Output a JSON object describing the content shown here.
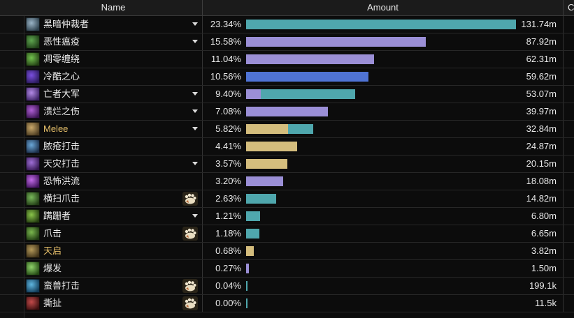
{
  "header": {
    "name_label": "Name",
    "amount_label": "Amount",
    "extra_label": "C"
  },
  "colors": {
    "teal": "#4fa7ad",
    "lavender": "#9b8fd6",
    "gold": "#d4bd7d",
    "blue": "#4f73d4"
  },
  "rows": [
    {
      "name": "黑暗仲裁者",
      "pct": "23.34%",
      "value": "131.74m",
      "share": 1.0,
      "dropdown": true,
      "pet": false,
      "gold": false,
      "segs": [
        {
          "c": "teal",
          "f": 1.0
        }
      ],
      "icon": "dark-arbiter-icon",
      "ic": [
        "#9ab4c6",
        "#2c3e4a"
      ]
    },
    {
      "name": "恶性瘟疫",
      "pct": "15.58%",
      "value": "87.92m",
      "share": 0.667,
      "dropdown": true,
      "pet": false,
      "gold": false,
      "segs": [
        {
          "c": "lavender",
          "f": 1.0
        }
      ],
      "icon": "virulent-plague-icon",
      "ic": [
        "#5ea64f",
        "#1e3d17"
      ]
    },
    {
      "name": "凋零缠绕",
      "pct": "11.04%",
      "value": "62.31m",
      "share": 0.473,
      "dropdown": false,
      "pet": false,
      "gold": false,
      "segs": [
        {
          "c": "lavender",
          "f": 1.0
        }
      ],
      "icon": "death-coil-icon",
      "ic": [
        "#72c24e",
        "#233f14"
      ]
    },
    {
      "name": "冷酷之心",
      "pct": "10.56%",
      "value": "59.62m",
      "share": 0.453,
      "dropdown": false,
      "pet": false,
      "gold": false,
      "segs": [
        {
          "c": "blue",
          "f": 1.0
        }
      ],
      "icon": "heart-icon",
      "ic": [
        "#7a4fe0",
        "#2a1a5a"
      ]
    },
    {
      "name": "亡者大军",
      "pct": "9.40%",
      "value": "53.07m",
      "share": 0.403,
      "dropdown": true,
      "pet": false,
      "gold": false,
      "segs": [
        {
          "c": "lavender",
          "f": 0.135
        },
        {
          "c": "teal",
          "f": 0.865
        }
      ],
      "icon": "army-icon",
      "ic": [
        "#b38ae6",
        "#3b2163"
      ]
    },
    {
      "name": "溃烂之伤",
      "pct": "7.08%",
      "value": "39.97m",
      "share": 0.303,
      "dropdown": true,
      "pet": false,
      "gold": false,
      "segs": [
        {
          "c": "lavender",
          "f": 1.0
        }
      ],
      "icon": "festering-wound-icon",
      "ic": [
        "#b05fd6",
        "#3a1350"
      ]
    },
    {
      "name": "Melee",
      "pct": "5.82%",
      "value": "32.84m",
      "share": 0.249,
      "dropdown": true,
      "pet": false,
      "gold": true,
      "segs": [
        {
          "c": "gold",
          "f": 0.63
        },
        {
          "c": "teal",
          "f": 0.37
        }
      ],
      "icon": "melee-icon",
      "ic": [
        "#c9a86a",
        "#4a3a20"
      ]
    },
    {
      "name": "脓疮打击",
      "pct": "4.41%",
      "value": "24.87m",
      "share": 0.189,
      "dropdown": false,
      "pet": false,
      "gold": false,
      "segs": [
        {
          "c": "gold",
          "f": 1.0
        }
      ],
      "icon": "festering-strike-icon",
      "ic": [
        "#6aa7d8",
        "#1c2f4a"
      ]
    },
    {
      "name": "天灾打击",
      "pct": "3.57%",
      "value": "20.15m",
      "share": 0.153,
      "dropdown": true,
      "pet": false,
      "gold": false,
      "segs": [
        {
          "c": "gold",
          "f": 1.0
        }
      ],
      "icon": "scourge-strike-icon",
      "ic": [
        "#9f6fd6",
        "#33174f"
      ]
    },
    {
      "name": "恐怖洪流",
      "pct": "3.20%",
      "value": "18.08m",
      "share": 0.137,
      "dropdown": false,
      "pet": false,
      "gold": false,
      "segs": [
        {
          "c": "lavender",
          "f": 1.0
        }
      ],
      "icon": "dread-torrent-icon",
      "ic": [
        "#c26ae8",
        "#3f1259"
      ]
    },
    {
      "name": "横扫爪击",
      "pct": "2.63%",
      "value": "14.82m",
      "share": 0.112,
      "dropdown": false,
      "pet": true,
      "gold": false,
      "segs": [
        {
          "c": "teal",
          "f": 1.0
        }
      ],
      "icon": "sweeping-claws-icon",
      "ic": [
        "#78b85a",
        "#213a15"
      ]
    },
    {
      "name": "蹒跚者",
      "pct": "1.21%",
      "value": "6.80m",
      "share": 0.052,
      "dropdown": true,
      "pet": false,
      "gold": false,
      "segs": [
        {
          "c": "teal",
          "f": 1.0
        }
      ],
      "icon": "shambler-icon",
      "ic": [
        "#8ac54a",
        "#243c10"
      ]
    },
    {
      "name": "爪击",
      "pct": "1.18%",
      "value": "6.65m",
      "share": 0.05,
      "dropdown": false,
      "pet": true,
      "gold": false,
      "segs": [
        {
          "c": "teal",
          "f": 1.0
        }
      ],
      "icon": "claw-icon",
      "ic": [
        "#7ab84e",
        "#1f3a12"
      ]
    },
    {
      "name": "天启",
      "pct": "0.68%",
      "value": "3.82m",
      "share": 0.029,
      "dropdown": false,
      "pet": false,
      "gold": true,
      "segs": [
        {
          "c": "gold",
          "f": 1.0
        }
      ],
      "icon": "apocalypse-icon",
      "ic": [
        "#b59a5a",
        "#3d3018"
      ]
    },
    {
      "name": "爆发",
      "pct": "0.27%",
      "value": "1.50m",
      "share": 0.011,
      "dropdown": false,
      "pet": false,
      "gold": false,
      "segs": [
        {
          "c": "lavender",
          "f": 1.0
        }
      ],
      "icon": "outbreak-icon",
      "ic": [
        "#8fd36a",
        "#244a14"
      ]
    },
    {
      "name": "蛮兽打击",
      "pct": "0.04%",
      "value": "199.1k",
      "share": 0.0016,
      "dropdown": false,
      "pet": true,
      "gold": false,
      "segs": [
        {
          "c": "teal",
          "f": 1.0
        }
      ],
      "icon": "bestial-strike-icon",
      "ic": [
        "#5fb6e0",
        "#113a56"
      ]
    },
    {
      "name": "撕扯",
      "pct": "0.00%",
      "value": "11.5k",
      "share": 0.0001,
      "dropdown": false,
      "pet": true,
      "gold": false,
      "segs": [
        {
          "c": "teal",
          "f": 1.0
        }
      ],
      "icon": "rend-icon",
      "ic": [
        "#c24a4a",
        "#3a0f0f"
      ]
    }
  ]
}
